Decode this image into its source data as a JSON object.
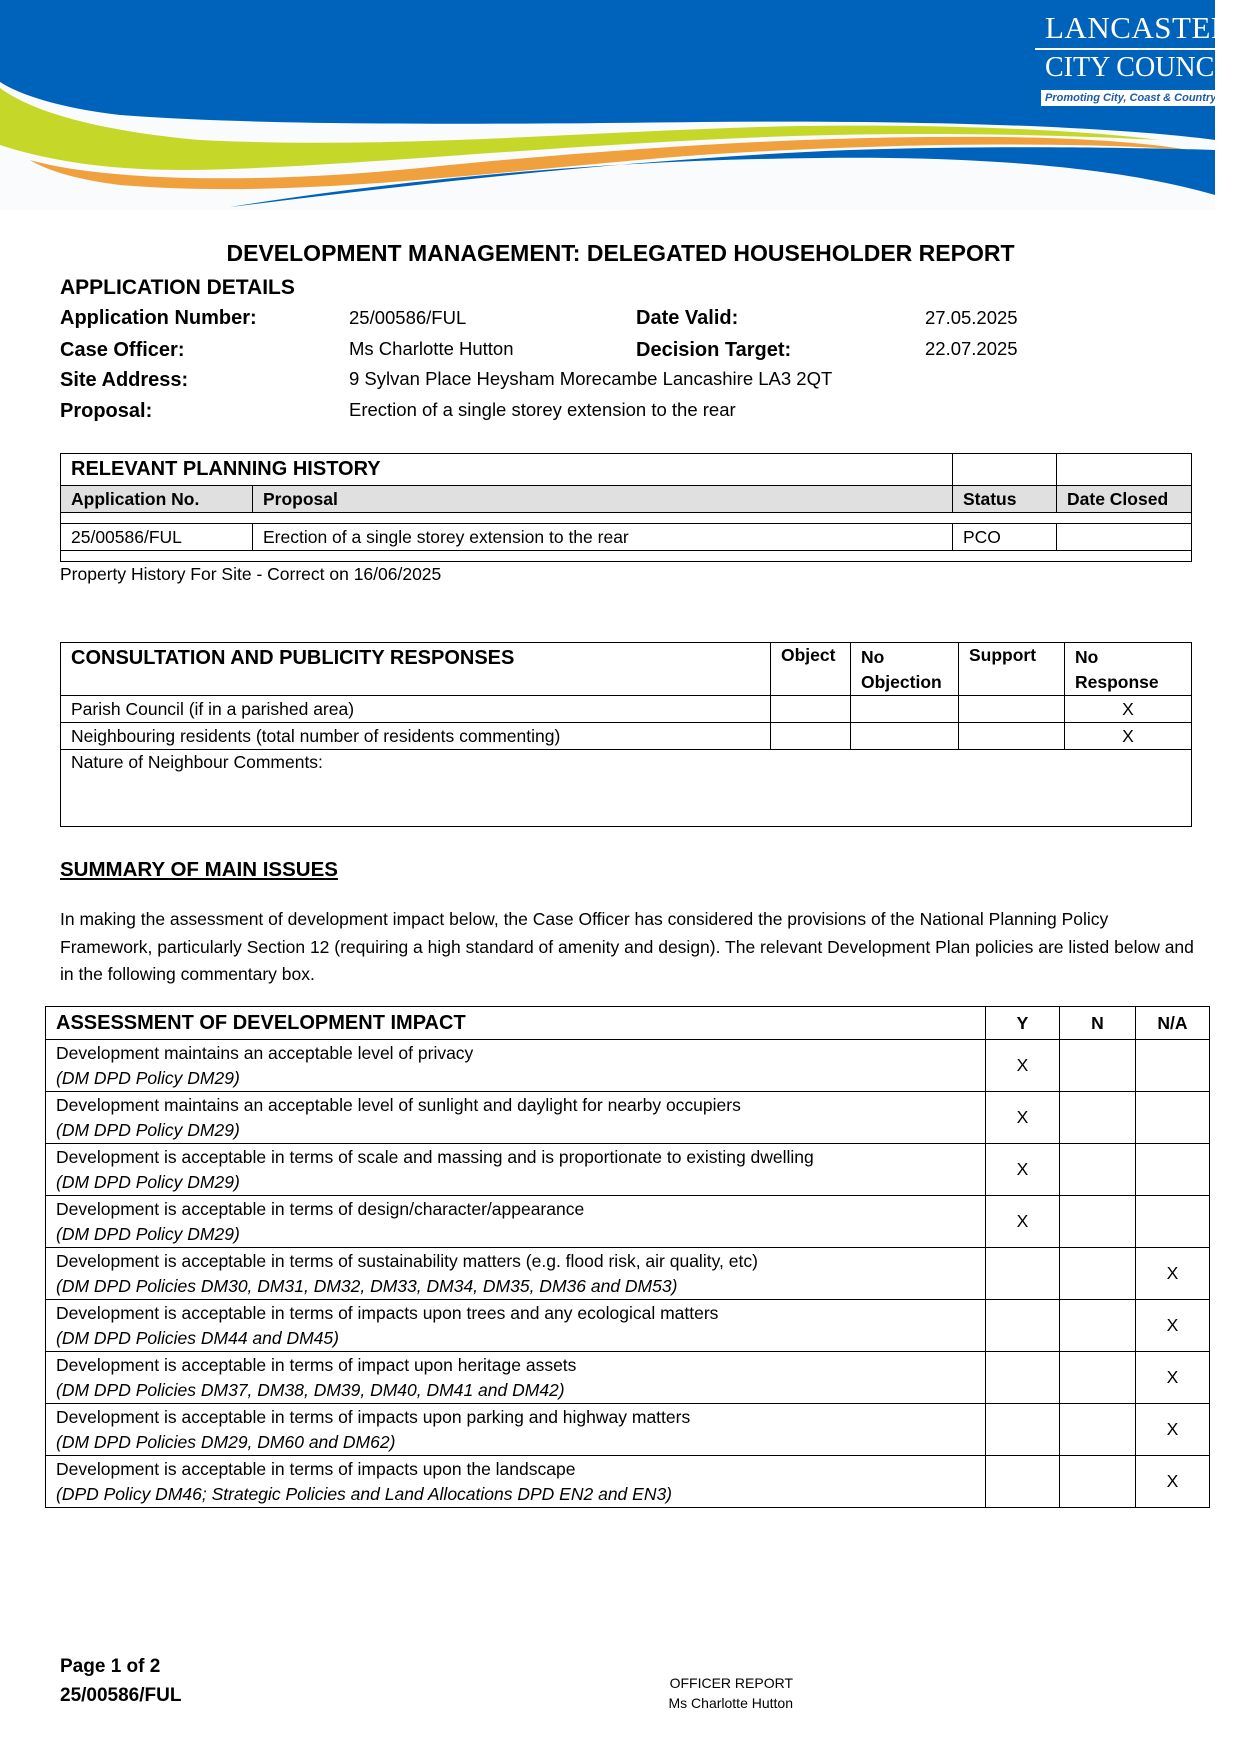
{
  "logo": {
    "line1": "LANCASTER",
    "line2": "CITY COUNCIL",
    "tagline": "Promoting City, Coast & Countryside",
    "colors": {
      "blue": "#0063bb",
      "green": "#c5d82a",
      "orange": "#f0a03c"
    }
  },
  "title": "DEVELOPMENT MANAGEMENT: DELEGATED HOUSEHOLDER REPORT",
  "application": {
    "heading": "APPLICATION DETAILS",
    "number_label": "Application Number:",
    "number": "25/00586/FUL",
    "date_valid_label": "Date Valid:",
    "date_valid": "27.05.2025",
    "officer_label": "Case Officer:",
    "officer": "Ms Charlotte Hutton",
    "target_label": "Decision Target:",
    "target": "22.07.2025",
    "address_label": "Site Address:",
    "address": "9 Sylvan Place Heysham Morecambe Lancashire LA3 2QT",
    "proposal_label": "Proposal:",
    "proposal": "Erection of a single storey extension to the rear"
  },
  "history": {
    "heading": "RELEVANT PLANNING HISTORY",
    "columns": [
      "Application No.",
      "Proposal",
      "Status",
      "Date Closed"
    ],
    "rows": [
      [
        "25/00586/FUL",
        "Erection of a single storey extension to the rear",
        "PCO",
        ""
      ]
    ],
    "note": "Property History For Site - Correct on 16/06/2025"
  },
  "consultation": {
    "heading": "CONSULTATION AND PUBLICITY RESPONSES",
    "columns": [
      "Object",
      "No Objection",
      "Support",
      "No Response"
    ],
    "rows": [
      {
        "label": "Parish Council (if in a parished area)",
        "object": "",
        "no_objection": "",
        "support": "",
        "no_response": "X"
      },
      {
        "label": "Neighbouring residents (total number of residents commenting)",
        "object": "",
        "no_objection": "",
        "support": "",
        "no_response": "X"
      }
    ],
    "nature_label": "Nature of Neighbour Comments:"
  },
  "summary": {
    "heading": "SUMMARY OF MAIN ISSUES",
    "text": "In making the assessment of development impact below, the Case Officer has considered the provisions of the National Planning Policy Framework, particularly Section 12 (requiring a high standard of amenity and design).  The relevant Development Plan policies are listed below and in the following commentary box."
  },
  "assessment": {
    "heading": "ASSESSMENT OF DEVELOPMENT IMPACT",
    "columns": [
      "Y",
      "N",
      "N/A"
    ],
    "rows": [
      {
        "text": "Development maintains an acceptable level of privacy",
        "policy": "(DM DPD Policy DM29)",
        "y": "X",
        "n": "",
        "na": ""
      },
      {
        "text": "Development maintains an acceptable level of sunlight and daylight for nearby occupiers",
        "policy": "(DM DPD Policy DM29)",
        "y": "X",
        "n": "",
        "na": ""
      },
      {
        "text": "Development is acceptable in terms of scale and massing and is proportionate to existing dwelling",
        "policy": "(DM DPD Policy DM29)",
        "y": "X",
        "n": "",
        "na": ""
      },
      {
        "text": "Development is acceptable in terms of design/character/appearance",
        "policy": "(DM DPD Policy DM29)",
        "y": "X",
        "n": "",
        "na": ""
      },
      {
        "text": "Development is acceptable in terms of sustainability matters (e.g. flood risk, air quality, etc)",
        "policy": "(DM DPD Policies DM30, DM31, DM32, DM33, DM34, DM35, DM36 and DM53)",
        "y": "",
        "n": "",
        "na": "X"
      },
      {
        "text": "Development is acceptable in terms of impacts upon trees and any ecological matters",
        "policy": "(DM DPD Policies DM44 and DM45)",
        "y": "",
        "n": "",
        "na": "X"
      },
      {
        "text": "Development is acceptable in terms of impact upon heritage assets",
        "policy": "(DM DPD Policies DM37, DM38, DM39, DM40, DM41 and DM42)",
        "y": "",
        "n": "",
        "na": "X"
      },
      {
        "text": "Development is acceptable in terms of impacts upon parking and highway matters",
        "policy": "(DM DPD Policies DM29, DM60 and DM62)",
        "y": "",
        "n": "",
        "na": "X"
      },
      {
        "text": "Development is acceptable in terms of impacts upon the landscape",
        "policy": "(DPD Policy DM46; Strategic Policies and Land Allocations DPD EN2 and EN3)",
        "y": "",
        "n": "",
        "na": "X"
      }
    ]
  },
  "footer": {
    "page": "Page 1 of 2",
    "ref": "25/00586/FUL",
    "report": "OFFICER REPORT",
    "officer": "Ms Charlotte Hutton"
  }
}
